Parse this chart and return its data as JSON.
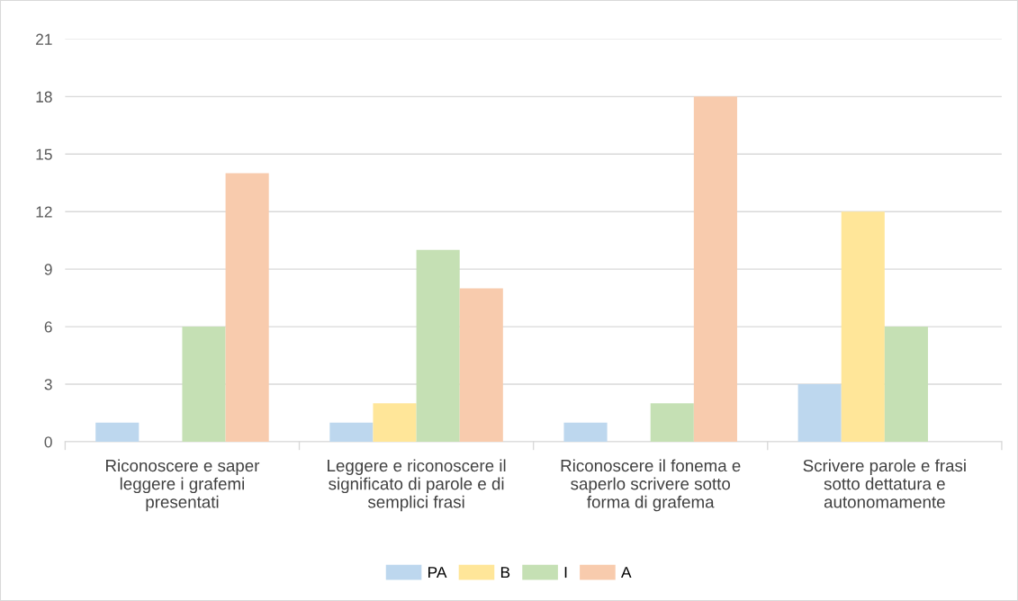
{
  "chart_data": {
    "type": "bar",
    "categories": [
      "Riconoscere e saper leggere i grafemi presentati",
      "Leggere e riconoscere il significato di parole e di semplici frasi",
      "Riconoscere il fonema e saperlo scrivere sotto forma di grafema",
      "Scrivere parole e frasi sotto dettatura e autonomamente"
    ],
    "series": [
      {
        "name": "PA",
        "color": "#bdd7ee",
        "values": [
          1,
          1,
          1,
          3
        ]
      },
      {
        "name": "B",
        "color": "#ffe699",
        "values": [
          0,
          2,
          0,
          12
        ]
      },
      {
        "name": "I",
        "color": "#c5e0b4",
        "values": [
          6,
          10,
          2,
          6
        ]
      },
      {
        "name": "A",
        "color": "#f8cbad",
        "values": [
          14,
          8,
          18,
          0
        ]
      }
    ],
    "ylim": [
      0,
      21
    ],
    "yticks": [
      0,
      3,
      6,
      9,
      12,
      15,
      18,
      21
    ],
    "grid": "y",
    "legend": "bottom"
  }
}
